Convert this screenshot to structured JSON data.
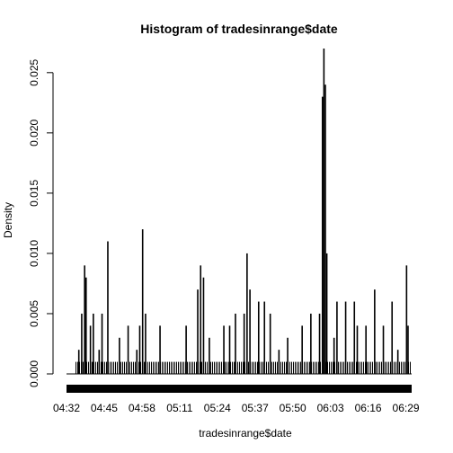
{
  "chart_data": {
    "type": "bar",
    "title": "Histogram of tradesinrange$date",
    "xlabel": "tradesinrange$date",
    "ylabel": "Density",
    "x_range": [
      "04:32",
      "06:31"
    ],
    "ylim": [
      0,
      0.027
    ],
    "x_ticks": [
      "04:32",
      "04:45",
      "04:58",
      "05:11",
      "05:24",
      "05:37",
      "05:50",
      "06:03",
      "06:16",
      "06:29"
    ],
    "y_ticks": [
      "0.000",
      "0.005",
      "0.010",
      "0.015",
      "0.020",
      "0.025"
    ],
    "y_tick_values": [
      0,
      0.005,
      0.01,
      0.015,
      0.02,
      0.025
    ],
    "bar_color": "#000000",
    "spikes": [
      {
        "time": "04:36",
        "value": 0.002
      },
      {
        "time": "04:37",
        "value": 0.005
      },
      {
        "time": "04:38",
        "value": 0.009
      },
      {
        "time": "04:38:30",
        "value": 0.008
      },
      {
        "time": "04:40",
        "value": 0.004
      },
      {
        "time": "04:41",
        "value": 0.005
      },
      {
        "time": "04:43",
        "value": 0.002
      },
      {
        "time": "04:44",
        "value": 0.005
      },
      {
        "time": "04:46",
        "value": 0.011
      },
      {
        "time": "04:50",
        "value": 0.003
      },
      {
        "time": "04:53",
        "value": 0.004
      },
      {
        "time": "04:56",
        "value": 0.002
      },
      {
        "time": "04:57",
        "value": 0.004
      },
      {
        "time": "04:58",
        "value": 0.012
      },
      {
        "time": "04:59",
        "value": 0.005
      },
      {
        "time": "05:04",
        "value": 0.004
      },
      {
        "time": "05:13",
        "value": 0.004
      },
      {
        "time": "05:17",
        "value": 0.007
      },
      {
        "time": "05:18",
        "value": 0.009
      },
      {
        "time": "05:19",
        "value": 0.008
      },
      {
        "time": "05:21",
        "value": 0.003
      },
      {
        "time": "05:26",
        "value": 0.004
      },
      {
        "time": "05:28",
        "value": 0.004
      },
      {
        "time": "05:30",
        "value": 0.005
      },
      {
        "time": "05:33",
        "value": 0.005
      },
      {
        "time": "05:34",
        "value": 0.01
      },
      {
        "time": "05:35",
        "value": 0.007
      },
      {
        "time": "05:38",
        "value": 0.006
      },
      {
        "time": "05:40",
        "value": 0.006
      },
      {
        "time": "05:42",
        "value": 0.005
      },
      {
        "time": "05:45",
        "value": 0.002
      },
      {
        "time": "05:48",
        "value": 0.003
      },
      {
        "time": "05:53",
        "value": 0.004
      },
      {
        "time": "05:56",
        "value": 0.005
      },
      {
        "time": "05:59",
        "value": 0.005
      },
      {
        "time": "06:00",
        "value": 0.023
      },
      {
        "time": "06:00:30",
        "value": 0.027
      },
      {
        "time": "06:01",
        "value": 0.024
      },
      {
        "time": "06:01:30",
        "value": 0.01
      },
      {
        "time": "06:04",
        "value": 0.003
      },
      {
        "time": "06:05",
        "value": 0.006
      },
      {
        "time": "06:08",
        "value": 0.006
      },
      {
        "time": "06:11",
        "value": 0.006
      },
      {
        "time": "06:12",
        "value": 0.004
      },
      {
        "time": "06:15",
        "value": 0.004
      },
      {
        "time": "06:18",
        "value": 0.007
      },
      {
        "time": "06:21",
        "value": 0.004
      },
      {
        "time": "06:24",
        "value": 0.006
      },
      {
        "time": "06:26",
        "value": 0.002
      },
      {
        "time": "06:29",
        "value": 0.009
      },
      {
        "time": "06:29:30",
        "value": 0.004
      }
    ],
    "baseline_density": 0.001
  }
}
